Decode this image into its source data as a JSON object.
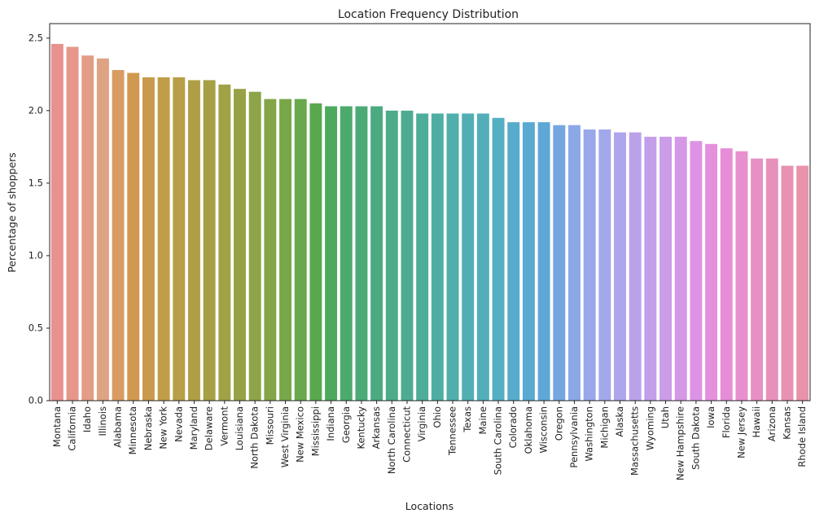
{
  "chart_data": {
    "type": "bar",
    "title": "Location Frequency Distribution",
    "xlabel": "Locations",
    "ylabel": "Percentage of shoppers",
    "ylim": [
      0,
      2.6
    ],
    "yticks": [
      0.0,
      0.5,
      1.0,
      1.5,
      2.0,
      2.5
    ],
    "ytick_labels": [
      "0.0",
      "0.5",
      "1.0",
      "1.5",
      "2.0",
      "2.5"
    ],
    "grid": false,
    "categories": [
      "Montana",
      "California",
      "Idaho",
      "Illinois",
      "Alabama",
      "Minnesota",
      "Nebraska",
      "New York",
      "Nevada",
      "Maryland",
      "Delaware",
      "Vermont",
      "Louisiana",
      "North Dakota",
      "Missouri",
      "West Virginia",
      "New Mexico",
      "Mississippi",
      "Indiana",
      "Georgia",
      "Kentucky",
      "Arkansas",
      "North Carolina",
      "Connecticut",
      "Virginia",
      "Ohio",
      "Tennessee",
      "Texas",
      "Maine",
      "South Carolina",
      "Colorado",
      "Oklahoma",
      "Wisconsin",
      "Oregon",
      "Pennsylvania",
      "Washington",
      "Michigan",
      "Alaska",
      "Massachusetts",
      "Wyoming",
      "Utah",
      "New Hampshire",
      "South Dakota",
      "Iowa",
      "Florida",
      "New Jersey",
      "Hawaii",
      "Arizona",
      "Kansas",
      "Rhode Island"
    ],
    "values": [
      2.46,
      2.44,
      2.38,
      2.36,
      2.28,
      2.26,
      2.23,
      2.23,
      2.23,
      2.21,
      2.21,
      2.18,
      2.15,
      2.13,
      2.08,
      2.08,
      2.08,
      2.05,
      2.03,
      2.03,
      2.03,
      2.03,
      2.0,
      2.0,
      1.98,
      1.98,
      1.98,
      1.98,
      1.98,
      1.95,
      1.92,
      1.92,
      1.92,
      1.9,
      1.9,
      1.87,
      1.87,
      1.85,
      1.85,
      1.82,
      1.82,
      1.82,
      1.79,
      1.77,
      1.74,
      1.72,
      1.67,
      1.67,
      1.62,
      1.62
    ],
    "colors": [
      "#e8918f",
      "#e6978a",
      "#e29d86",
      "#dea383",
      "#d89c63",
      "#d1994f",
      "#c99a4b",
      "#c29d47",
      "#b89e46",
      "#af9e45",
      "#a69f45",
      "#a0a246",
      "#97a247",
      "#8da448",
      "#83a548",
      "#78a749",
      "#69a84c",
      "#5aa84e",
      "#4da95c",
      "#4caa6c",
      "#4caa77",
      "#4caa80",
      "#4dab88",
      "#4eab91",
      "#4ead99",
      "#4faea3",
      "#50aeab",
      "#51aeb3",
      "#52afba",
      "#55afc3",
      "#57abcb",
      "#5aa9d1",
      "#5ea7d6",
      "#76a6e0",
      "#8aa8e6",
      "#98a8e9",
      "#a3a7eb",
      "#afa5ec",
      "#baa2ea",
      "#c39fea",
      "#cb9ce8",
      "#d498e6",
      "#dd93e3",
      "#e490dd",
      "#e78cd6",
      "#e88fce",
      "#e790c5",
      "#e790bc",
      "#e891b3",
      "#e993ab"
    ]
  }
}
